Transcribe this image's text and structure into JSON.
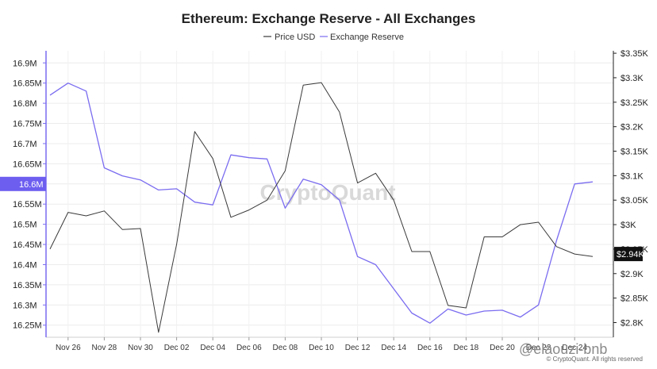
{
  "chart_data": {
    "type": "line",
    "title": "Ethereum: Exchange Reserve - All Exchanges",
    "x": [
      "Nov 25",
      "Nov 26",
      "Nov 27",
      "Nov 28",
      "Nov 29",
      "Nov 30",
      "Dec 01",
      "Dec 02",
      "Dec 03",
      "Dec 04",
      "Dec 05",
      "Dec 06",
      "Dec 07",
      "Dec 08",
      "Dec 09",
      "Dec 10",
      "Dec 11",
      "Dec 12",
      "Dec 13",
      "Dec 14",
      "Dec 15",
      "Dec 16",
      "Dec 17",
      "Dec 18",
      "Dec 19",
      "Dec 20",
      "Dec 21",
      "Dec 22",
      "Dec 23",
      "Dec 24",
      "Dec 25"
    ],
    "x_tick_labels": [
      "Nov 26",
      "Nov 28",
      "Nov 30",
      "Dec 02",
      "Dec 04",
      "Dec 06",
      "Dec 08",
      "Dec 10",
      "Dec 12",
      "Dec 14",
      "Dec 16",
      "Dec 18",
      "Dec 20",
      "Dec 22",
      "Dec 24"
    ],
    "series": [
      {
        "name": "Price USD",
        "axis": "right",
        "color": "#3a3a3a",
        "values": [
          2950,
          3025,
          3018,
          3028,
          2990,
          2992,
          2780,
          2960,
          3190,
          3135,
          3015,
          3030,
          3050,
          3110,
          3285,
          3290,
          3230,
          3085,
          3105,
          3050,
          2945,
          2945,
          2835,
          2830,
          2975,
          2975,
          3000,
          3005,
          2955,
          2940,
          2935
        ]
      },
      {
        "name": "Exchange Reserve",
        "axis": "left",
        "color": "#7a6cf0",
        "values": [
          16.82,
          16.85,
          16.83,
          16.64,
          16.62,
          16.61,
          16.585,
          16.588,
          16.555,
          16.548,
          16.672,
          16.665,
          16.662,
          16.54,
          16.612,
          16.598,
          16.56,
          16.42,
          16.4,
          16.34,
          16.28,
          16.255,
          16.29,
          16.275,
          16.285,
          16.287,
          16.27,
          16.3,
          16.46,
          16.6,
          16.605
        ]
      }
    ],
    "y_left": {
      "ticks": [
        "16.25M",
        "16.3M",
        "16.35M",
        "16.4M",
        "16.45M",
        "16.5M",
        "16.55M",
        "16.6M",
        "16.65M",
        "16.7M",
        "16.75M",
        "16.8M",
        "16.85M",
        "16.9M"
      ],
      "ylim": [
        16.22,
        16.93
      ]
    },
    "y_right": {
      "ticks": [
        "$2.8K",
        "$2.85K",
        "$2.9K",
        "$2.95K",
        "$3K",
        "$3.05K",
        "$3.1K",
        "$3.15K",
        "$3.2K",
        "$3.25K",
        "$3.3K",
        "$3.35K"
      ],
      "ylim": [
        2770,
        3355
      ]
    },
    "left_badge": "16.6M",
    "right_badge": "$2.94K",
    "legend_position": "top-center",
    "grid": true
  },
  "watermark": "CryptoQuant",
  "footer_text": "© CryptoQuant. All rights reserved",
  "overlay_handle": "@elaouzi-bnb"
}
